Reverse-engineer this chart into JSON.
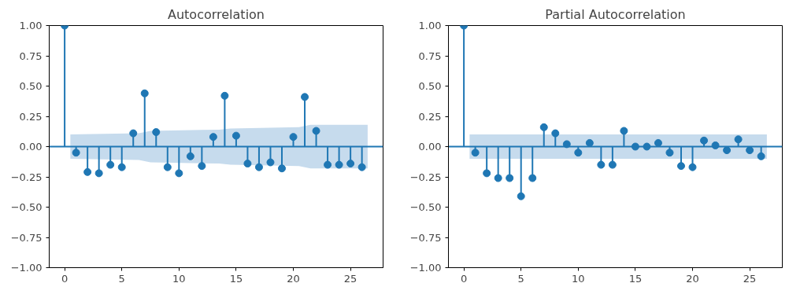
{
  "chart_data": [
    {
      "type": "lollipop",
      "title": "Autocorrelation",
      "x": [
        0,
        1,
        2,
        3,
        4,
        5,
        6,
        7,
        8,
        9,
        10,
        11,
        12,
        13,
        14,
        15,
        16,
        17,
        18,
        19,
        20,
        21,
        22,
        23,
        24,
        25,
        26
      ],
      "series": [
        {
          "type": "area",
          "color": "#c6dbed",
          "x": [
            0.5,
            6.5,
            7.5,
            13.5,
            14.5,
            20.5,
            21.5,
            26.5
          ],
          "values": [
            0.1,
            0.11,
            0.13,
            0.14,
            0.15,
            0.16,
            0.18,
            0.18
          ]
        },
        {
          "type": "area",
          "color": "#c6dbed",
          "x": [
            0.5,
            6.5,
            7.5,
            13.5,
            14.5,
            20.5,
            21.5,
            26.5
          ],
          "values": [
            -0.1,
            -0.11,
            -0.13,
            -0.14,
            -0.15,
            -0.16,
            -0.18,
            -0.18
          ]
        },
        {
          "marker": "circle",
          "color": "#1f77b4",
          "values": [
            1.0,
            -0.05,
            -0.21,
            -0.22,
            -0.15,
            -0.17,
            0.11,
            0.44,
            0.12,
            -0.17,
            -0.22,
            -0.08,
            -0.16,
            0.08,
            0.42,
            0.09,
            -0.14,
            -0.17,
            -0.13,
            -0.18,
            0.08,
            0.41,
            0.13,
            -0.15,
            -0.15,
            -0.14,
            -0.17
          ]
        }
      ],
      "ref_lines": [
        {
          "axis": "y",
          "value": 0,
          "color": "#1f77b4"
        }
      ],
      "xlim": [
        -1.35,
        27.85
      ],
      "ylim": [
        -1,
        1
      ],
      "xticks": [
        0,
        5,
        10,
        15,
        20,
        25
      ],
      "yticks": [
        {
          "value": -1,
          "label": "−1.00"
        },
        {
          "value": -0.75,
          "label": "−0.75"
        },
        {
          "value": -0.5,
          "label": "−0.50"
        },
        {
          "value": -0.25,
          "label": "−0.25"
        },
        {
          "value": 0,
          "label": "0.00"
        },
        {
          "value": 0.25,
          "label": "0.25"
        },
        {
          "value": 0.5,
          "label": "0.50"
        },
        {
          "value": 0.75,
          "label": "0.75"
        },
        {
          "value": 1,
          "label": "1.00"
        }
      ]
    },
    {
      "type": "lollipop",
      "title": "Partial Autocorrelation",
      "x": [
        0,
        1,
        2,
        3,
        4,
        5,
        6,
        7,
        8,
        9,
        10,
        11,
        12,
        13,
        14,
        15,
        16,
        17,
        18,
        19,
        20,
        21,
        22,
        23,
        24,
        25,
        26
      ],
      "series": [
        {
          "type": "area",
          "color": "#c6dbed",
          "x": [
            0.5,
            26.5
          ],
          "values": [
            0.1,
            0.1
          ]
        },
        {
          "type": "area",
          "color": "#c6dbed",
          "x": [
            0.5,
            26.5
          ],
          "values": [
            -0.1,
            -0.1
          ]
        },
        {
          "marker": "circle",
          "color": "#1f77b4",
          "values": [
            1.0,
            -0.05,
            -0.22,
            -0.26,
            -0.26,
            -0.41,
            -0.26,
            0.16,
            0.11,
            0.02,
            -0.05,
            0.03,
            -0.15,
            -0.15,
            0.13,
            0.0,
            0.0,
            0.03,
            -0.05,
            -0.16,
            -0.17,
            0.05,
            0.01,
            -0.03,
            0.06,
            -0.03,
            -0.08
          ]
        }
      ],
      "ref_lines": [
        {
          "axis": "y",
          "value": 0,
          "color": "#1f77b4"
        }
      ],
      "xlim": [
        -1.35,
        27.85
      ],
      "ylim": [
        -1,
        1
      ],
      "xticks": [
        0,
        5,
        10,
        15,
        20,
        25
      ],
      "yticks": [
        {
          "value": -1,
          "label": "−1.00"
        },
        {
          "value": -0.75,
          "label": "−0.75"
        },
        {
          "value": -0.5,
          "label": "−0.50"
        },
        {
          "value": -0.25,
          "label": "−0.25"
        },
        {
          "value": 0,
          "label": "0.00"
        },
        {
          "value": 0.25,
          "label": "0.25"
        },
        {
          "value": 0.5,
          "label": "0.50"
        },
        {
          "value": 0.75,
          "label": "0.75"
        },
        {
          "value": 1,
          "label": "1.00"
        }
      ]
    }
  ]
}
